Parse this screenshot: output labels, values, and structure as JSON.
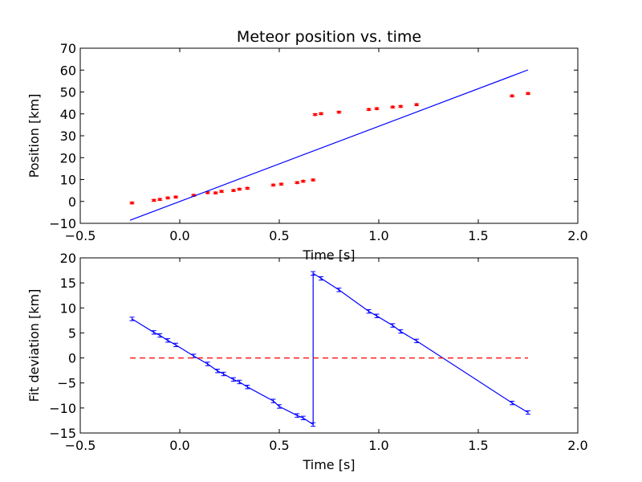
{
  "chart_data": [
    {
      "type": "scatter",
      "title": "Meteor position vs. time",
      "xlabel": "Time [s]",
      "ylabel": "Position [km]",
      "xlim": [
        -0.5,
        2.0
      ],
      "ylim": [
        -10,
        70
      ],
      "x_ticks": [
        "−0.5",
        "0.0",
        "0.5",
        "1.0",
        "1.5",
        "2.0"
      ],
      "y_ticks": [
        "−10",
        "0",
        "10",
        "20",
        "30",
        "40",
        "50",
        "60",
        "70"
      ],
      "grid": false,
      "series": [
        {
          "kind": "points-with-errorbars",
          "color": "#ff0000",
          "x": [
            -0.24,
            -0.13,
            -0.1,
            -0.06,
            -0.02,
            0.07,
            0.14,
            0.18,
            0.21,
            0.27,
            0.3,
            0.34,
            0.47,
            0.51,
            0.59,
            0.62,
            0.67,
            0.68,
            0.71,
            0.8,
            0.95,
            0.99,
            1.07,
            1.11,
            1.19,
            1.67,
            1.75
          ],
          "y": [
            -0.7,
            0.5,
            0.9,
            1.6,
            2.0,
            2.8,
            4.0,
            3.9,
            4.6,
            5.0,
            5.6,
            6.0,
            7.5,
            7.9,
            8.6,
            9.2,
            9.8,
            39.7,
            40.1,
            40.8,
            42.0,
            42.4,
            43.1,
            43.4,
            44.2,
            48.2,
            49.3
          ],
          "yerr": 0.4
        },
        {
          "kind": "line",
          "color": "#0000ff",
          "x": [
            -0.25,
            1.75
          ],
          "y": [
            -8.6,
            60.1
          ]
        }
      ]
    },
    {
      "type": "line",
      "title": "",
      "xlabel": "Time [s]",
      "ylabel": "Fit deviation [km]",
      "xlim": [
        -0.5,
        2.0
      ],
      "ylim": [
        -15,
        20
      ],
      "x_ticks": [
        "−0.5",
        "0.0",
        "0.5",
        "1.0",
        "1.5",
        "2.0"
      ],
      "y_ticks": [
        "−15",
        "−10",
        "−5",
        "0",
        "5",
        "10",
        "15",
        "20"
      ],
      "grid": false,
      "series": [
        {
          "kind": "line-with-errorbars",
          "color": "#0000ff",
          "x": [
            -0.24,
            -0.13,
            -0.1,
            -0.06,
            -0.02,
            0.07,
            0.14,
            0.19,
            0.22,
            0.27,
            0.3,
            0.34,
            0.47,
            0.5,
            0.59,
            0.62,
            0.67,
            0.67,
            0.71,
            0.8,
            0.95,
            0.99,
            1.07,
            1.11,
            1.19,
            1.67,
            1.75
          ],
          "y": [
            7.8,
            5.1,
            4.5,
            3.5,
            2.6,
            0.4,
            -1.2,
            -2.6,
            -3.2,
            -4.3,
            -4.8,
            -5.8,
            -8.6,
            -9.7,
            -11.5,
            -12.0,
            -13.3,
            16.9,
            15.9,
            13.6,
            9.3,
            8.4,
            6.5,
            5.3,
            3.4,
            -9.0,
            -10.9
          ],
          "yerr": 0.35
        },
        {
          "kind": "dashed-line",
          "color": "#ff0000",
          "x": [
            -0.25,
            1.75
          ],
          "y": [
            0,
            0
          ]
        }
      ]
    }
  ]
}
